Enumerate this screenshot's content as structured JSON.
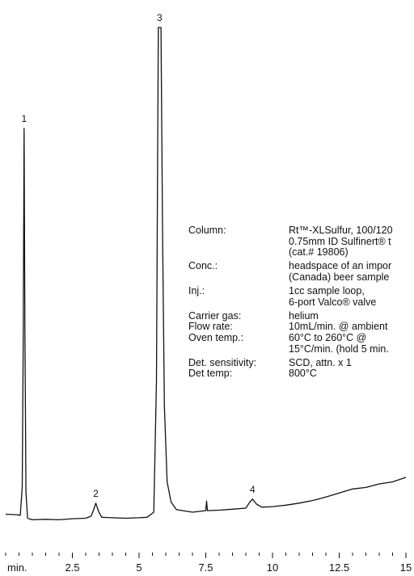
{
  "chart_data": {
    "type": "line",
    "title": "",
    "xlabel": "min.",
    "ylabel": "",
    "xlim": [
      0,
      15
    ],
    "x_ticks": [
      2.5,
      5,
      7.5,
      10,
      12.5,
      15
    ],
    "x_tick_labels": [
      "2.5",
      "5",
      "7.5",
      "10",
      "12.5",
      "15"
    ],
    "x_minor_step": 0.5,
    "grid": false,
    "legend": "none",
    "series": [
      {
        "color": "#111111",
        "points": [
          [
            0,
            3.6
          ],
          [
            0.4,
            3.5
          ],
          [
            0.55,
            3.4
          ],
          [
            0.62,
            9
          ],
          [
            0.66,
            40
          ],
          [
            0.69,
            80
          ],
          [
            0.72,
            40
          ],
          [
            0.76,
            8
          ],
          [
            0.82,
            2.8
          ],
          [
            1.0,
            2.5
          ],
          [
            1.5,
            2.6
          ],
          [
            2.0,
            2.5
          ],
          [
            2.5,
            2.7
          ],
          [
            3.0,
            2.8
          ],
          [
            3.2,
            3.2
          ],
          [
            3.3,
            4.5
          ],
          [
            3.38,
            5.8
          ],
          [
            3.48,
            4.2
          ],
          [
            3.6,
            3.0
          ],
          [
            4.0,
            2.9
          ],
          [
            4.5,
            2.8
          ],
          [
            5.0,
            2.9
          ],
          [
            5.3,
            3.0
          ],
          [
            5.55,
            4.0
          ],
          [
            5.65,
            30
          ],
          [
            5.72,
            100
          ],
          [
            5.82,
            100
          ],
          [
            5.88,
            60
          ],
          [
            5.95,
            25
          ],
          [
            6.05,
            10
          ],
          [
            6.2,
            6
          ],
          [
            6.4,
            4.5
          ],
          [
            7.0,
            4.0
          ],
          [
            7.5,
            4.3
          ],
          [
            7.53,
            6.2
          ],
          [
            7.56,
            4.3
          ],
          [
            8.0,
            4.4
          ],
          [
            8.5,
            4.6
          ],
          [
            9.0,
            4.8
          ],
          [
            9.15,
            6.0
          ],
          [
            9.25,
            6.6
          ],
          [
            9.4,
            5.6
          ],
          [
            9.6,
            5.0
          ],
          [
            10.0,
            5.1
          ],
          [
            10.5,
            5.4
          ],
          [
            11.0,
            5.8
          ],
          [
            11.5,
            6.3
          ],
          [
            12.0,
            7.0
          ],
          [
            12.5,
            7.8
          ],
          [
            13.0,
            8.6
          ],
          [
            13.5,
            8.9
          ],
          [
            14.0,
            9.6
          ],
          [
            14.5,
            10.0
          ],
          [
            15.0,
            10.9
          ]
        ]
      }
    ],
    "peaks": [
      {
        "label": "1",
        "x": 0.69,
        "y": 80
      },
      {
        "label": "2",
        "x": 3.38,
        "y": 5.8
      },
      {
        "label": "3",
        "x": 5.77,
        "y": 100
      },
      {
        "label": "4",
        "x": 9.25,
        "y": 6.6
      }
    ]
  },
  "conditions": [
    {
      "label": "Column:",
      "value": [
        "Rt™-XLSulfur, 100/120",
        "0.75mm ID Sulfinert® t",
        "(cat.# 19806)"
      ]
    },
    {
      "label": "Conc.:",
      "value": [
        "headspace of an impor",
        "(Canada) beer sample"
      ]
    },
    {
      "label": "Inj.:",
      "value": [
        "1cc sample loop,",
        "6-port Valco® valve"
      ]
    },
    {
      "label": "Carrier gas:",
      "value": [
        "helium"
      ]
    },
    {
      "label": "Flow rate:",
      "value": [
        "10mL/min. @ ambient"
      ]
    },
    {
      "label": "Oven temp.:",
      "value": [
        "60°C to 260°C @",
        "15°C/min. (hold 5 min."
      ]
    },
    {
      "label": "Det. sensitivity:",
      "value": [
        "SCD, attn. x 1"
      ]
    },
    {
      "label": "Det temp:",
      "value": [
        "800°C"
      ]
    }
  ]
}
